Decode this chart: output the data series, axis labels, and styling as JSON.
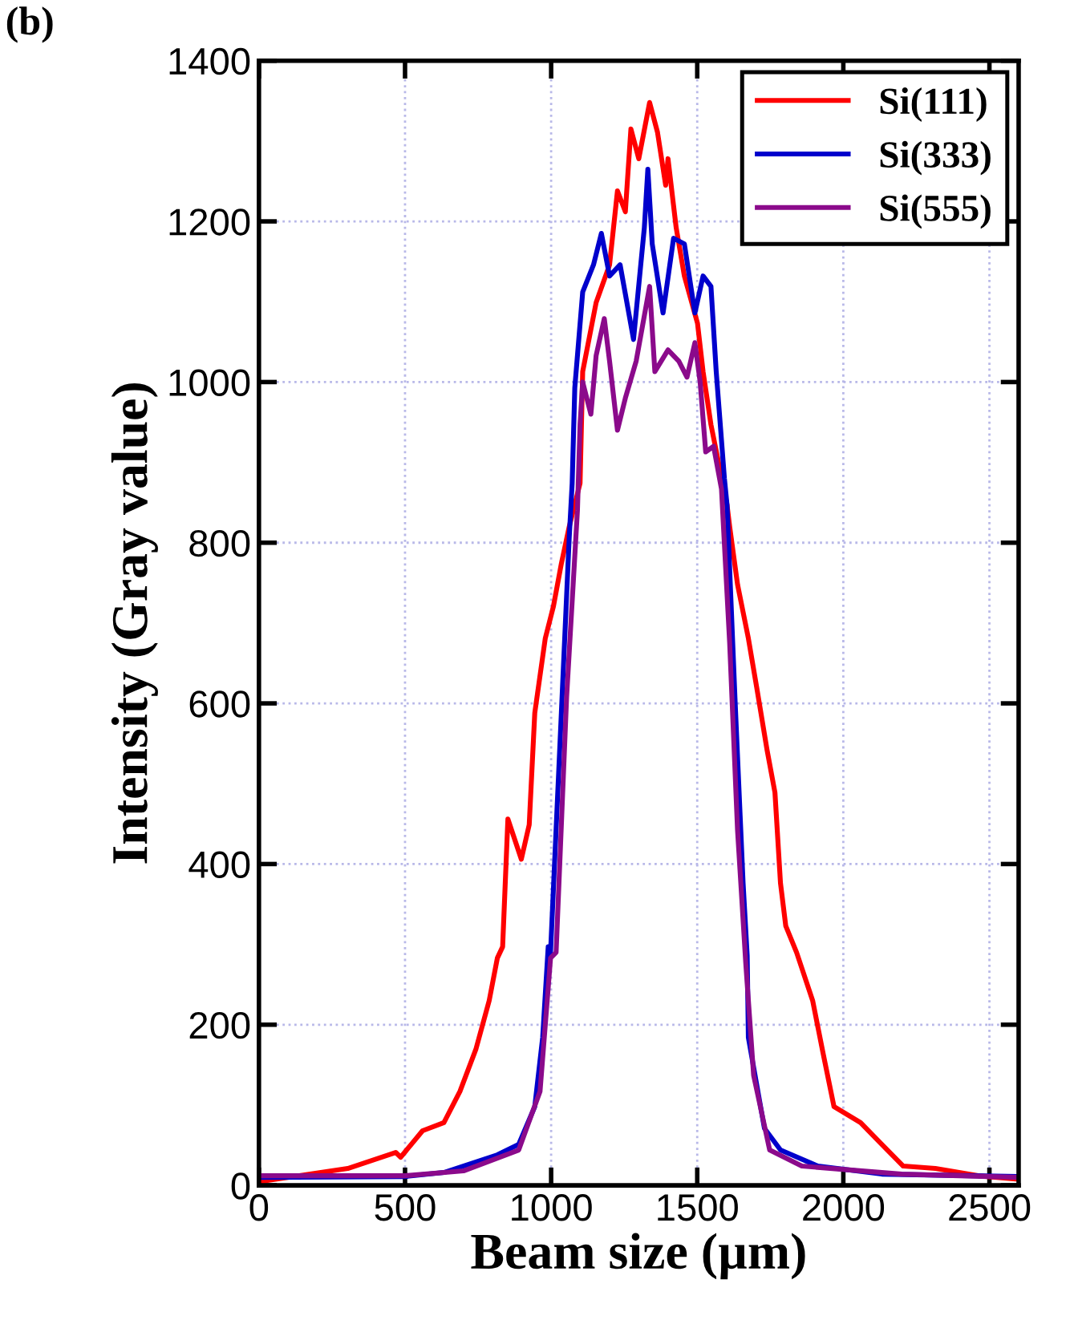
{
  "chart_data": {
    "type": "line",
    "xlabel": "Beam size (µm)",
    "ylabel": "Intensity (Gray value)",
    "annotations": [
      "(b)"
    ],
    "xlim": [
      0,
      2600
    ],
    "ylim": [
      0,
      1400
    ],
    "xticks": [
      0,
      500,
      1000,
      1500,
      2000,
      2500
    ],
    "yticks": [
      0,
      200,
      400,
      600,
      800,
      1000,
      1200,
      1400
    ],
    "grid": true,
    "legend": "top right",
    "marker": "none",
    "line_style": "solid",
    "series": [
      {
        "name": "Si(111)",
        "color": "#ff0000",
        "x": [
          10,
          304,
          468,
          485,
          560,
          633,
          688,
          743,
          788,
          816,
          834,
          852,
          898,
          925,
          944,
          980,
          1008,
          1035,
          1062,
          1099,
          1108,
          1154,
          1200,
          1227,
          1254,
          1273,
          1300,
          1337,
          1364,
          1392,
          1400,
          1428,
          1456,
          1501,
          1520,
          1547,
          1602,
          1611,
          1638,
          1675,
          1703,
          1739,
          1766,
          1785,
          1803,
          1840,
          1895,
          1931,
          1968,
          2059,
          2132,
          2205,
          2315,
          2461,
          2590
        ],
        "values": [
          5,
          21,
          41,
          35,
          68,
          78,
          117,
          170,
          230,
          283,
          297,
          456,
          406,
          449,
          588,
          681,
          721,
          774,
          820,
          874,
          1013,
          1099,
          1146,
          1238,
          1212,
          1315,
          1278,
          1348,
          1311,
          1245,
          1278,
          1192,
          1132,
          1073,
          1013,
          947,
          847,
          820,
          748,
          681,
          621,
          542,
          489,
          376,
          323,
          290,
          230,
          164,
          98,
          78,
          51,
          24,
          21,
          12,
          8
        ]
      },
      {
        "name": "Si(333)",
        "color": "#0000cc",
        "x": [
          10,
          500,
          633,
          816,
          889,
          944,
          971,
          990,
          998,
          1035,
          1062,
          1072,
          1081,
          1108,
          1145,
          1172,
          1200,
          1236,
          1282,
          1319,
          1331,
          1346,
          1383,
          1419,
          1456,
          1492,
          1520,
          1547,
          1565,
          1593,
          1602,
          1629,
          1657,
          1671,
          1675,
          1730,
          1785,
          1913,
          2132,
          2590
        ],
        "values": [
          10,
          11,
          16,
          38,
          51,
          98,
          184,
          297,
          290,
          588,
          807,
          874,
          993,
          1112,
          1146,
          1185,
          1132,
          1146,
          1053,
          1192,
          1265,
          1172,
          1086,
          1179,
          1172,
          1086,
          1132,
          1119,
          1013,
          880,
          847,
          608,
          376,
          286,
          184,
          71,
          44,
          24,
          14,
          11
        ]
      },
      {
        "name": "Si(555)",
        "color": "#8b0a8b",
        "x": [
          10,
          500,
          700,
          889,
          962,
          998,
          1017,
          1053,
          1090,
          1099,
          1108,
          1136,
          1154,
          1182,
          1200,
          1227,
          1254,
          1291,
          1337,
          1355,
          1400,
          1437,
          1465,
          1492,
          1510,
          1529,
          1556,
          1583,
          1611,
          1638,
          1666,
          1693,
          1748,
          1858,
          2200,
          2590
        ],
        "values": [
          12,
          12,
          18,
          44,
          117,
          283,
          290,
          608,
          840,
          947,
          1000,
          960,
          1033,
          1079,
          1026,
          940,
          980,
          1026,
          1119,
          1013,
          1040,
          1026,
          1006,
          1049,
          1000,
          913,
          920,
          867,
          675,
          442,
          277,
          137,
          44,
          24,
          14,
          10
        ]
      }
    ]
  }
}
